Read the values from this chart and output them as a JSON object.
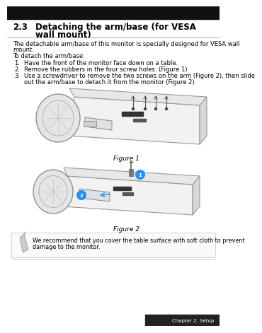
{
  "bg_color": "#ffffff",
  "title_num": "2.3",
  "title_text1": "Detaching the arm/base (for VESA",
  "title_text2": "wall mount)",
  "title_fontsize": 8.5,
  "body1": "The detachable arm/base of this monitor is specially designed for VESA wall",
  "body2": "mount.",
  "body3": "To detach the arm/base:",
  "body_fontsize": 6.0,
  "steps": [
    "Have the front of the monitor face down on a table.",
    "Remove the rubbers in the four screw holes. (Figure 1)",
    "Use a screwdriver to remove the two screws on the arm (Figure 2), then slide",
    "out the arm/base to detach it from the monitor (Figure 2)."
  ],
  "step_fontsize": 6.0,
  "fig1_label": "Figure 1",
  "fig2_label": "Figure 2",
  "fig_label_fontsize": 6.5,
  "note_line1": "We recommend that you cover the table surface with soft cloth to prevent",
  "note_line2": "damage to the monitor.",
  "note_fontsize": 5.8,
  "footer_text": "Chapter 2: Setup",
  "footer_fontsize": 5.0,
  "footer_bg": "#222222",
  "border_top_color": "#000000",
  "gray_band_color": "#1a1a1a"
}
